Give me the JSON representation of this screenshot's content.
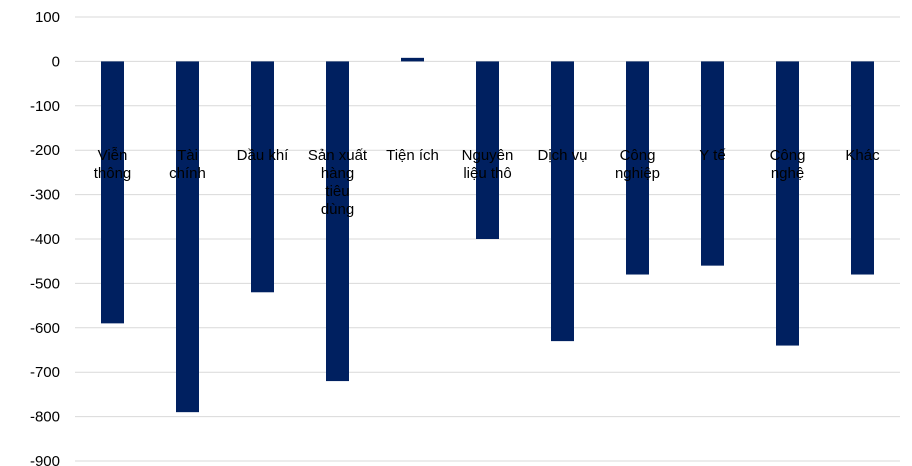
{
  "chart_data": {
    "type": "bar",
    "title": "",
    "xlabel": "",
    "ylabel": "",
    "ylim": [
      -900,
      100
    ],
    "y_ticks": [
      100,
      0,
      -100,
      -200,
      -300,
      -400,
      -500,
      -600,
      -700,
      -800,
      -900
    ],
    "grid": true,
    "legend": "none",
    "bar_color": "#002060",
    "categories": [
      [
        "Viễn",
        "thông"
      ],
      [
        "Tài",
        "chính"
      ],
      [
        "Dầu khí"
      ],
      [
        "Sản xuất",
        "hàng",
        "tiêu",
        "dùng"
      ],
      [
        "Tiện ích"
      ],
      [
        "Nguyên",
        "liệu thô"
      ],
      [
        "Dịch vụ"
      ],
      [
        "Công",
        "nghiệp"
      ],
      [
        "Y tế"
      ],
      [
        "Công",
        "nghệ"
      ],
      [
        "Khác"
      ]
    ],
    "values": [
      -590,
      -790,
      -520,
      -720,
      8,
      -400,
      -630,
      -480,
      -460,
      -640,
      -480
    ]
  }
}
